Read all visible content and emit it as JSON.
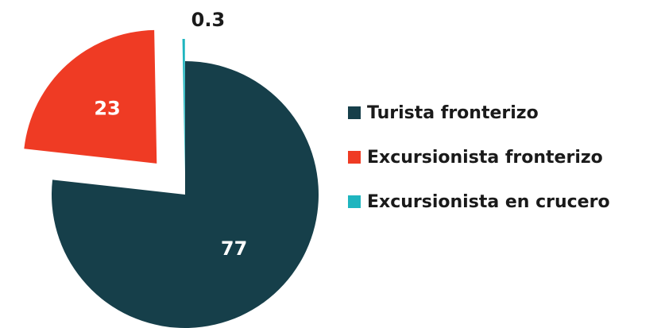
{
  "chart_data": {
    "type": "pie",
    "title": "",
    "categories": [
      "Turista fronterizo",
      "Excursionista fronterizo",
      "Excursionista en crucero"
    ],
    "values": [
      77,
      23,
      0.3
    ],
    "value_labels": [
      "77",
      "23",
      "0.3"
    ],
    "colors": [
      "#163f4a",
      "#ef3b24",
      "#1fb5bf"
    ],
    "label_colors": [
      "#ffffff",
      "#ffffff",
      "#1a1a1a"
    ],
    "exploded": true,
    "legend_position": "right"
  }
}
